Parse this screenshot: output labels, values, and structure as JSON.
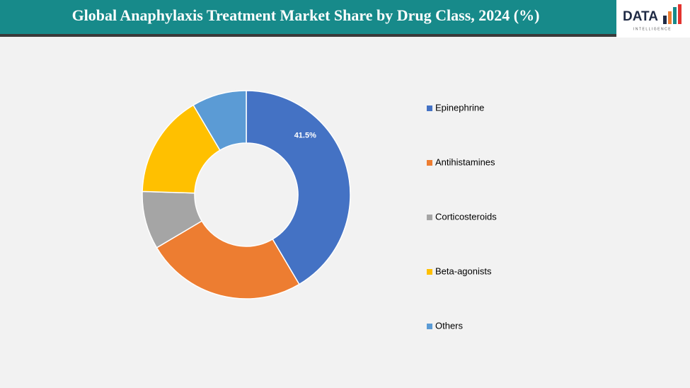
{
  "chart_data": {
    "type": "donut",
    "title": "Global Anaphylaxis Treatment Market Share by Drug Class, 2024 (%)",
    "categories": [
      "Epinephrine",
      "Antihistamines",
      "Corticosteroids",
      "Beta-agonists",
      "Others"
    ],
    "values": [
      41.5,
      25,
      9,
      16,
      8.5
    ],
    "value_labels": [
      "41.5%",
      null,
      null,
      null,
      null
    ],
    "colors": [
      "#4472c4",
      "#ed7d31",
      "#a5a5a5",
      "#ffc000",
      "#5b9bd5"
    ],
    "legend": "right"
  },
  "logo": {
    "text": "DATA",
    "subtext": "INTELLIGENCE"
  }
}
